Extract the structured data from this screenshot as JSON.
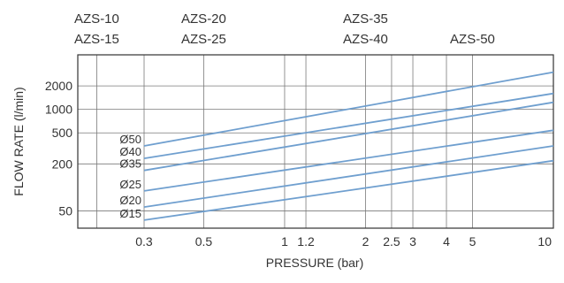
{
  "chart_data": {
    "type": "line",
    "title": "",
    "xlabel": "PRESSURE (bar)",
    "ylabel": "FLOW RATE  (l/min)",
    "x_scale": "log",
    "y_scale": "log",
    "xlim": [
      0.17,
      10
    ],
    "ylim": [
      30,
      5000
    ],
    "x_ticks": [
      {
        "value": 0.3,
        "label": "0.3"
      },
      {
        "value": 0.5,
        "label": "0.5"
      },
      {
        "value": 1,
        "label": "1"
      },
      {
        "value": 1.2,
        "label": "1.2"
      },
      {
        "value": 2,
        "label": "2"
      },
      {
        "value": 2.5,
        "label": "2.5"
      },
      {
        "value": 3,
        "label": "3"
      },
      {
        "value": 4,
        "label": "4"
      },
      {
        "value": 5,
        "label": "5"
      },
      {
        "value": 10,
        "label": "10"
      }
    ],
    "x_grid_only": [
      0.2
    ],
    "y_ticks": [
      {
        "value": 50,
        "label": "50"
      },
      {
        "value": 200,
        "label": "200"
      },
      {
        "value": 500,
        "label": "500"
      },
      {
        "value": 1000,
        "label": "1000"
      },
      {
        "value": 2000,
        "label": "2000"
      }
    ],
    "grid": true,
    "line_color": "#6f9fcf",
    "models": {
      "row1": [
        {
          "label": "AZS-10",
          "x": 0.2
        },
        {
          "label": "AZS-20",
          "x": 0.5
        },
        {
          "label": "AZS-35",
          "x": 2
        }
      ],
      "row2": [
        {
          "label": "AZS-15",
          "x": 0.2
        },
        {
          "label": "AZS-25",
          "x": 0.5
        },
        {
          "label": "AZS-40",
          "x": 2
        },
        {
          "label": "AZS-50",
          "x": 5
        }
      ]
    },
    "series": [
      {
        "name": "Ø50",
        "x": [
          0.3,
          10
        ],
        "y": [
          340,
          3000
        ]
      },
      {
        "name": "Ø40",
        "x": [
          0.3,
          10
        ],
        "y": [
          235,
          1600
        ]
      },
      {
        "name": "Ø35",
        "x": [
          0.3,
          10
        ],
        "y": [
          165,
          1230
        ]
      },
      {
        "name": "Ø25",
        "x": [
          0.3,
          10
        ],
        "y": [
          90,
          540
        ]
      },
      {
        "name": "Ø20",
        "x": [
          0.3,
          10
        ],
        "y": [
          56,
          340
        ]
      },
      {
        "name": "Ø15",
        "x": [
          0.3,
          10
        ],
        "y": [
          38,
          220
        ]
      }
    ]
  }
}
